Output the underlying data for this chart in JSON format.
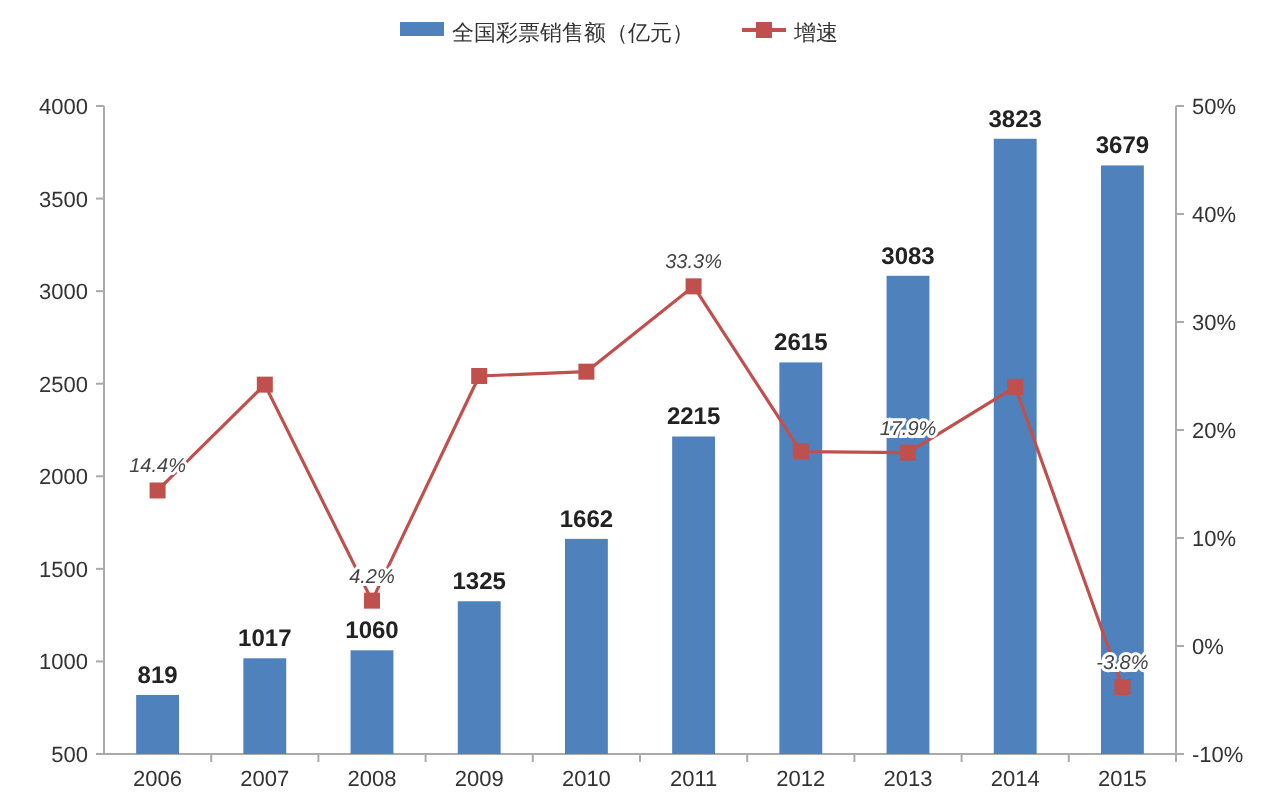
{
  "chart_data": {
    "type": "bar",
    "categories": [
      "2006",
      "2007",
      "2008",
      "2009",
      "2010",
      "2011",
      "2012",
      "2013",
      "2014",
      "2015"
    ],
    "series": [
      {
        "name": "全国彩票销售额（亿元）",
        "color": "#4f81bd",
        "values": [
          819,
          1017,
          1060,
          1325,
          1662,
          2215,
          2615,
          3083,
          3823,
          3679
        ],
        "data_labels": true
      },
      {
        "name": "增速",
        "type": "line",
        "axis": "y2",
        "color": "#c0504d",
        "marker": "square",
        "values": [
          14.4,
          24.2,
          4.2,
          25.0,
          25.4,
          33.3,
          18.0,
          17.9,
          24.0,
          -3.8
        ],
        "value_labels": [
          "14.4%",
          null,
          "4.2%",
          null,
          null,
          "33.3%",
          null,
          "17.9%",
          null,
          "-3.8%"
        ]
      }
    ],
    "ylim": [
      500,
      4000
    ],
    "yticks": [
      500,
      1000,
      1500,
      2000,
      2500,
      3000,
      3500,
      4000
    ],
    "y2lim": [
      -10,
      50
    ],
    "y2ticks": [
      {
        "value": -10,
        "label": "-10%"
      },
      {
        "value": 0,
        "label": "0%"
      },
      {
        "value": 10,
        "label": "10%"
      },
      {
        "value": 20,
        "label": "20%"
      },
      {
        "value": 30,
        "label": "30%"
      },
      {
        "value": 40,
        "label": "40%"
      },
      {
        "value": 50,
        "label": "50%"
      }
    ],
    "legend": "top",
    "grid": false
  }
}
